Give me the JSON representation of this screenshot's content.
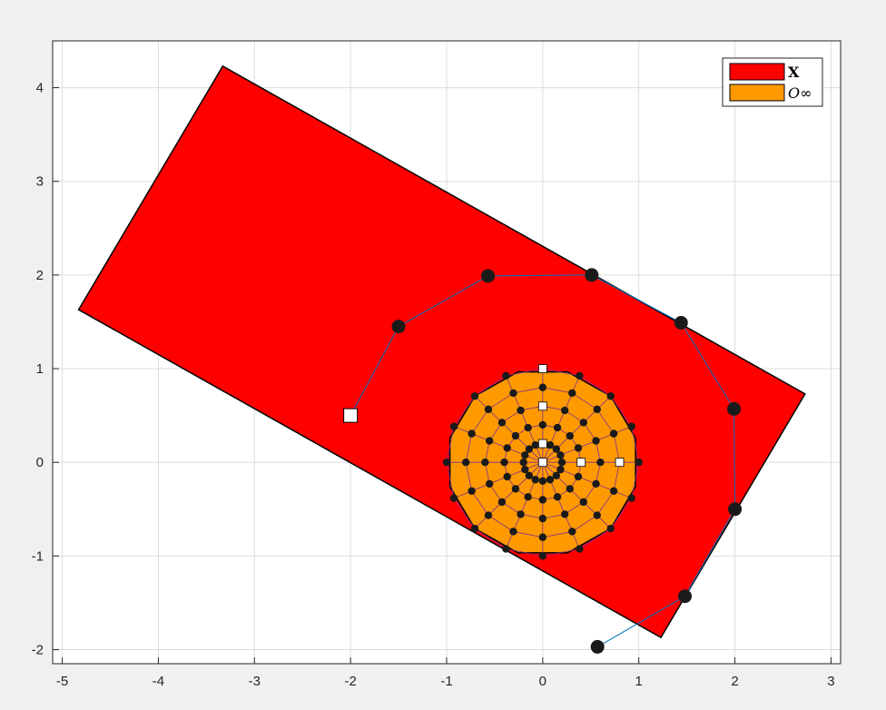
{
  "chart_data": {
    "type": "scatter",
    "title": "",
    "xlabel": "",
    "ylabel": "",
    "xlim": [
      -5.1,
      3.1
    ],
    "ylim": [
      -2.15,
      4.5
    ],
    "xticks": [
      -5,
      -4,
      -3,
      -2,
      -1,
      0,
      1,
      2,
      3
    ],
    "yticks": [
      -2,
      -1,
      0,
      1,
      2,
      3,
      4
    ],
    "grid": true,
    "legend": {
      "placement": "top-right",
      "entries": [
        {
          "label": "X",
          "color": "#ff0000"
        },
        {
          "label": "O∞",
          "color": "#ff9900"
        }
      ]
    },
    "regions": [
      {
        "name": "X",
        "color": "#ff0000",
        "vertices": [
          [
            -3.33,
            4.23
          ],
          [
            2.73,
            0.73
          ],
          [
            1.23,
            -1.87
          ],
          [
            -4.83,
            1.63
          ]
        ]
      },
      {
        "name": "O∞",
        "color": "#ff9900",
        "center": [
          0,
          0
        ],
        "radius": 1.0,
        "sides": 12
      }
    ],
    "trajectory": {
      "start": [
        -2.0,
        0.5
      ],
      "points": [
        [
          -1.5,
          1.45
        ],
        [
          -0.57,
          1.99
        ],
        [
          0.51,
          2.0
        ],
        [
          1.44,
          1.49
        ],
        [
          1.99,
          0.57
        ],
        [
          2.0,
          -0.5
        ],
        [
          1.48,
          -1.43
        ],
        [
          0.57,
          -1.97
        ]
      ],
      "line_color": "#0072bd",
      "marker_color": "#1a1a1a"
    },
    "inner_trajectories": {
      "radii": [
        0.2,
        0.4,
        0.6,
        0.8,
        1.0
      ],
      "points_per_ring": 16,
      "line_color": "#7e2f8e",
      "marker_color": "#1a1a1a"
    },
    "start_markers": [
      [
        0,
        1.0
      ],
      [
        0,
        0.6
      ],
      [
        0,
        0.2
      ],
      [
        0,
        0
      ],
      [
        0.4,
        0
      ],
      [
        0.8,
        0
      ]
    ]
  }
}
